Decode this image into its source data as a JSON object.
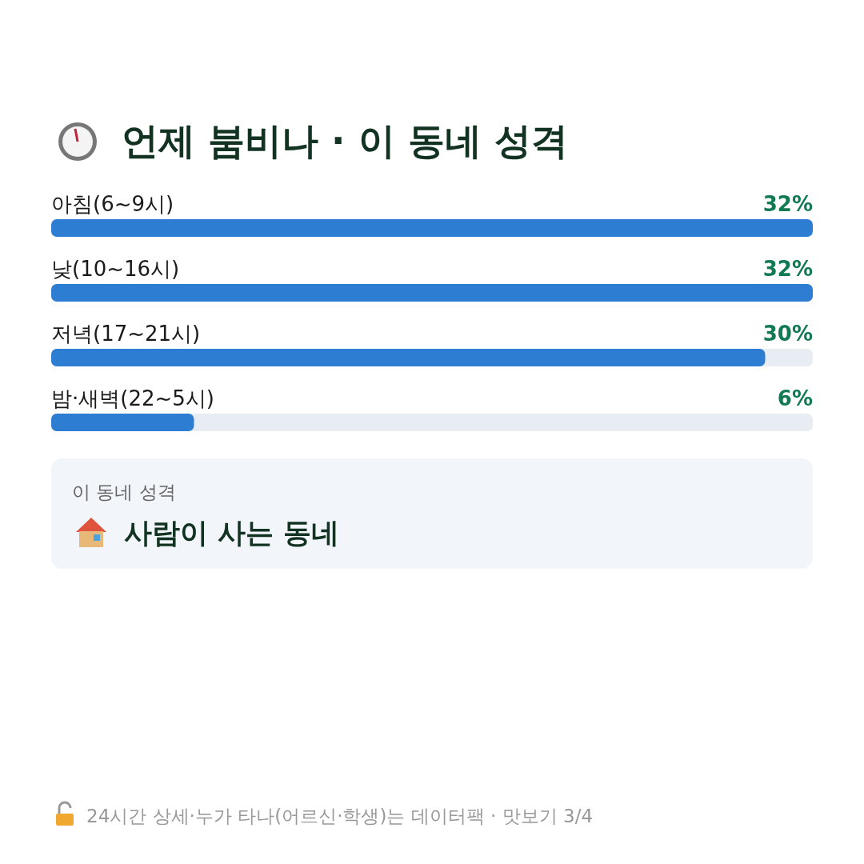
{
  "chart_data": {
    "type": "bar",
    "orientation": "horizontal",
    "title": "언제 붐비나 · 이 동네 성격",
    "categories": [
      "아침(6~9시)",
      "낮(10~16시)",
      "저녁(17~21시)",
      "밤·새벽(22~5시)"
    ],
    "values": [
      32,
      32,
      30,
      6
    ],
    "value_labels": [
      "32%",
      "32%",
      "30%",
      "6%"
    ],
    "color": "#2d7dd2",
    "annotations": [
      "이 동네 성격",
      "사람이 사는 동네",
      "24시간 상세·누가 타나(어르신·학생)는 데이터팩 · 맛보기 3/4"
    ]
  }
}
